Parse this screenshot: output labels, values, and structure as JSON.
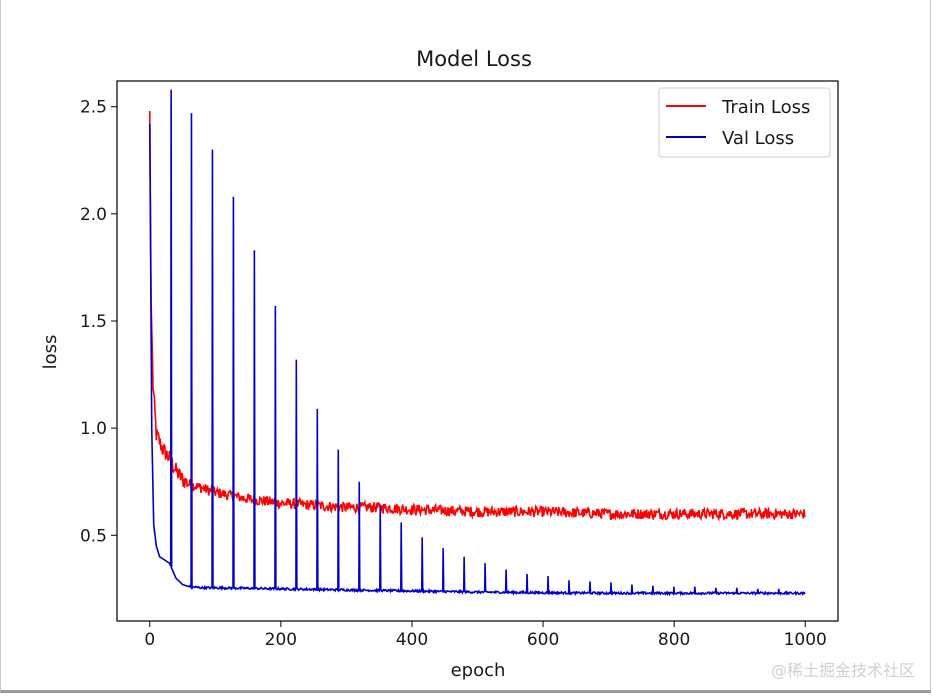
{
  "chart_data": {
    "type": "line",
    "title": "Model Loss",
    "xlabel": "epoch",
    "ylabel": "loss",
    "xlim": [
      -50,
      1050
    ],
    "ylim": [
      0.1,
      2.62
    ],
    "xticks": [
      0,
      200,
      400,
      600,
      800,
      1000
    ],
    "yticks": [
      0.5,
      1.0,
      1.5,
      2.0,
      2.5
    ],
    "xtick_labels": [
      "0",
      "200",
      "400",
      "600",
      "800",
      "1000"
    ],
    "ytick_labels": [
      "0.5",
      "1.0",
      "1.5",
      "2.0",
      "2.5"
    ],
    "legend_position": "top-right",
    "grid": false,
    "series": [
      {
        "name": "Train Loss",
        "color": "#ff0000",
        "x": [
          0,
          2,
          5,
          10,
          20,
          30,
          40,
          50,
          60,
          80,
          100,
          150,
          200,
          250,
          300,
          350,
          400,
          500,
          600,
          700,
          800,
          900,
          1000
        ],
        "y": [
          2.48,
          1.6,
          1.2,
          0.97,
          0.9,
          0.86,
          0.8,
          0.76,
          0.74,
          0.72,
          0.7,
          0.67,
          0.65,
          0.64,
          0.63,
          0.63,
          0.62,
          0.61,
          0.61,
          0.6,
          0.6,
          0.6,
          0.6
        ],
        "noise_amplitude": 0.025
      },
      {
        "name": "Val Loss",
        "color": "#0000cc",
        "x": [
          0,
          3,
          6,
          10,
          15,
          20,
          30,
          40,
          50,
          60,
          80,
          100,
          200,
          300,
          400,
          500,
          600,
          700,
          800,
          900,
          1000
        ],
        "y": [
          2.42,
          1.0,
          0.55,
          0.45,
          0.4,
          0.39,
          0.37,
          0.3,
          0.27,
          0.26,
          0.255,
          0.255,
          0.25,
          0.245,
          0.24,
          0.235,
          0.232,
          0.23,
          0.23,
          0.23,
          0.23
        ],
        "spikes": [
          {
            "x": 32,
            "y": 2.58
          },
          {
            "x": 63,
            "y": 2.47
          },
          {
            "x": 95,
            "y": 2.3
          },
          {
            "x": 127,
            "y": 2.08
          },
          {
            "x": 159,
            "y": 1.83
          },
          {
            "x": 191,
            "y": 1.57
          },
          {
            "x": 223,
            "y": 1.32
          },
          {
            "x": 255,
            "y": 1.09
          },
          {
            "x": 287,
            "y": 0.9
          },
          {
            "x": 319,
            "y": 0.75
          },
          {
            "x": 351,
            "y": 0.64
          },
          {
            "x": 383,
            "y": 0.56
          },
          {
            "x": 415,
            "y": 0.49
          },
          {
            "x": 447,
            "y": 0.44
          },
          {
            "x": 479,
            "y": 0.4
          },
          {
            "x": 511,
            "y": 0.37
          },
          {
            "x": 543,
            "y": 0.34
          },
          {
            "x": 575,
            "y": 0.32
          },
          {
            "x": 607,
            "y": 0.31
          },
          {
            "x": 639,
            "y": 0.29
          },
          {
            "x": 671,
            "y": 0.285
          },
          {
            "x": 703,
            "y": 0.28
          },
          {
            "x": 735,
            "y": 0.27
          },
          {
            "x": 767,
            "y": 0.265
          },
          {
            "x": 799,
            "y": 0.26
          },
          {
            "x": 831,
            "y": 0.26
          },
          {
            "x": 863,
            "y": 0.255
          },
          {
            "x": 895,
            "y": 0.255
          },
          {
            "x": 927,
            "y": 0.25
          },
          {
            "x": 959,
            "y": 0.25
          }
        ]
      }
    ]
  },
  "watermark": "@稀土掘金技术社区"
}
